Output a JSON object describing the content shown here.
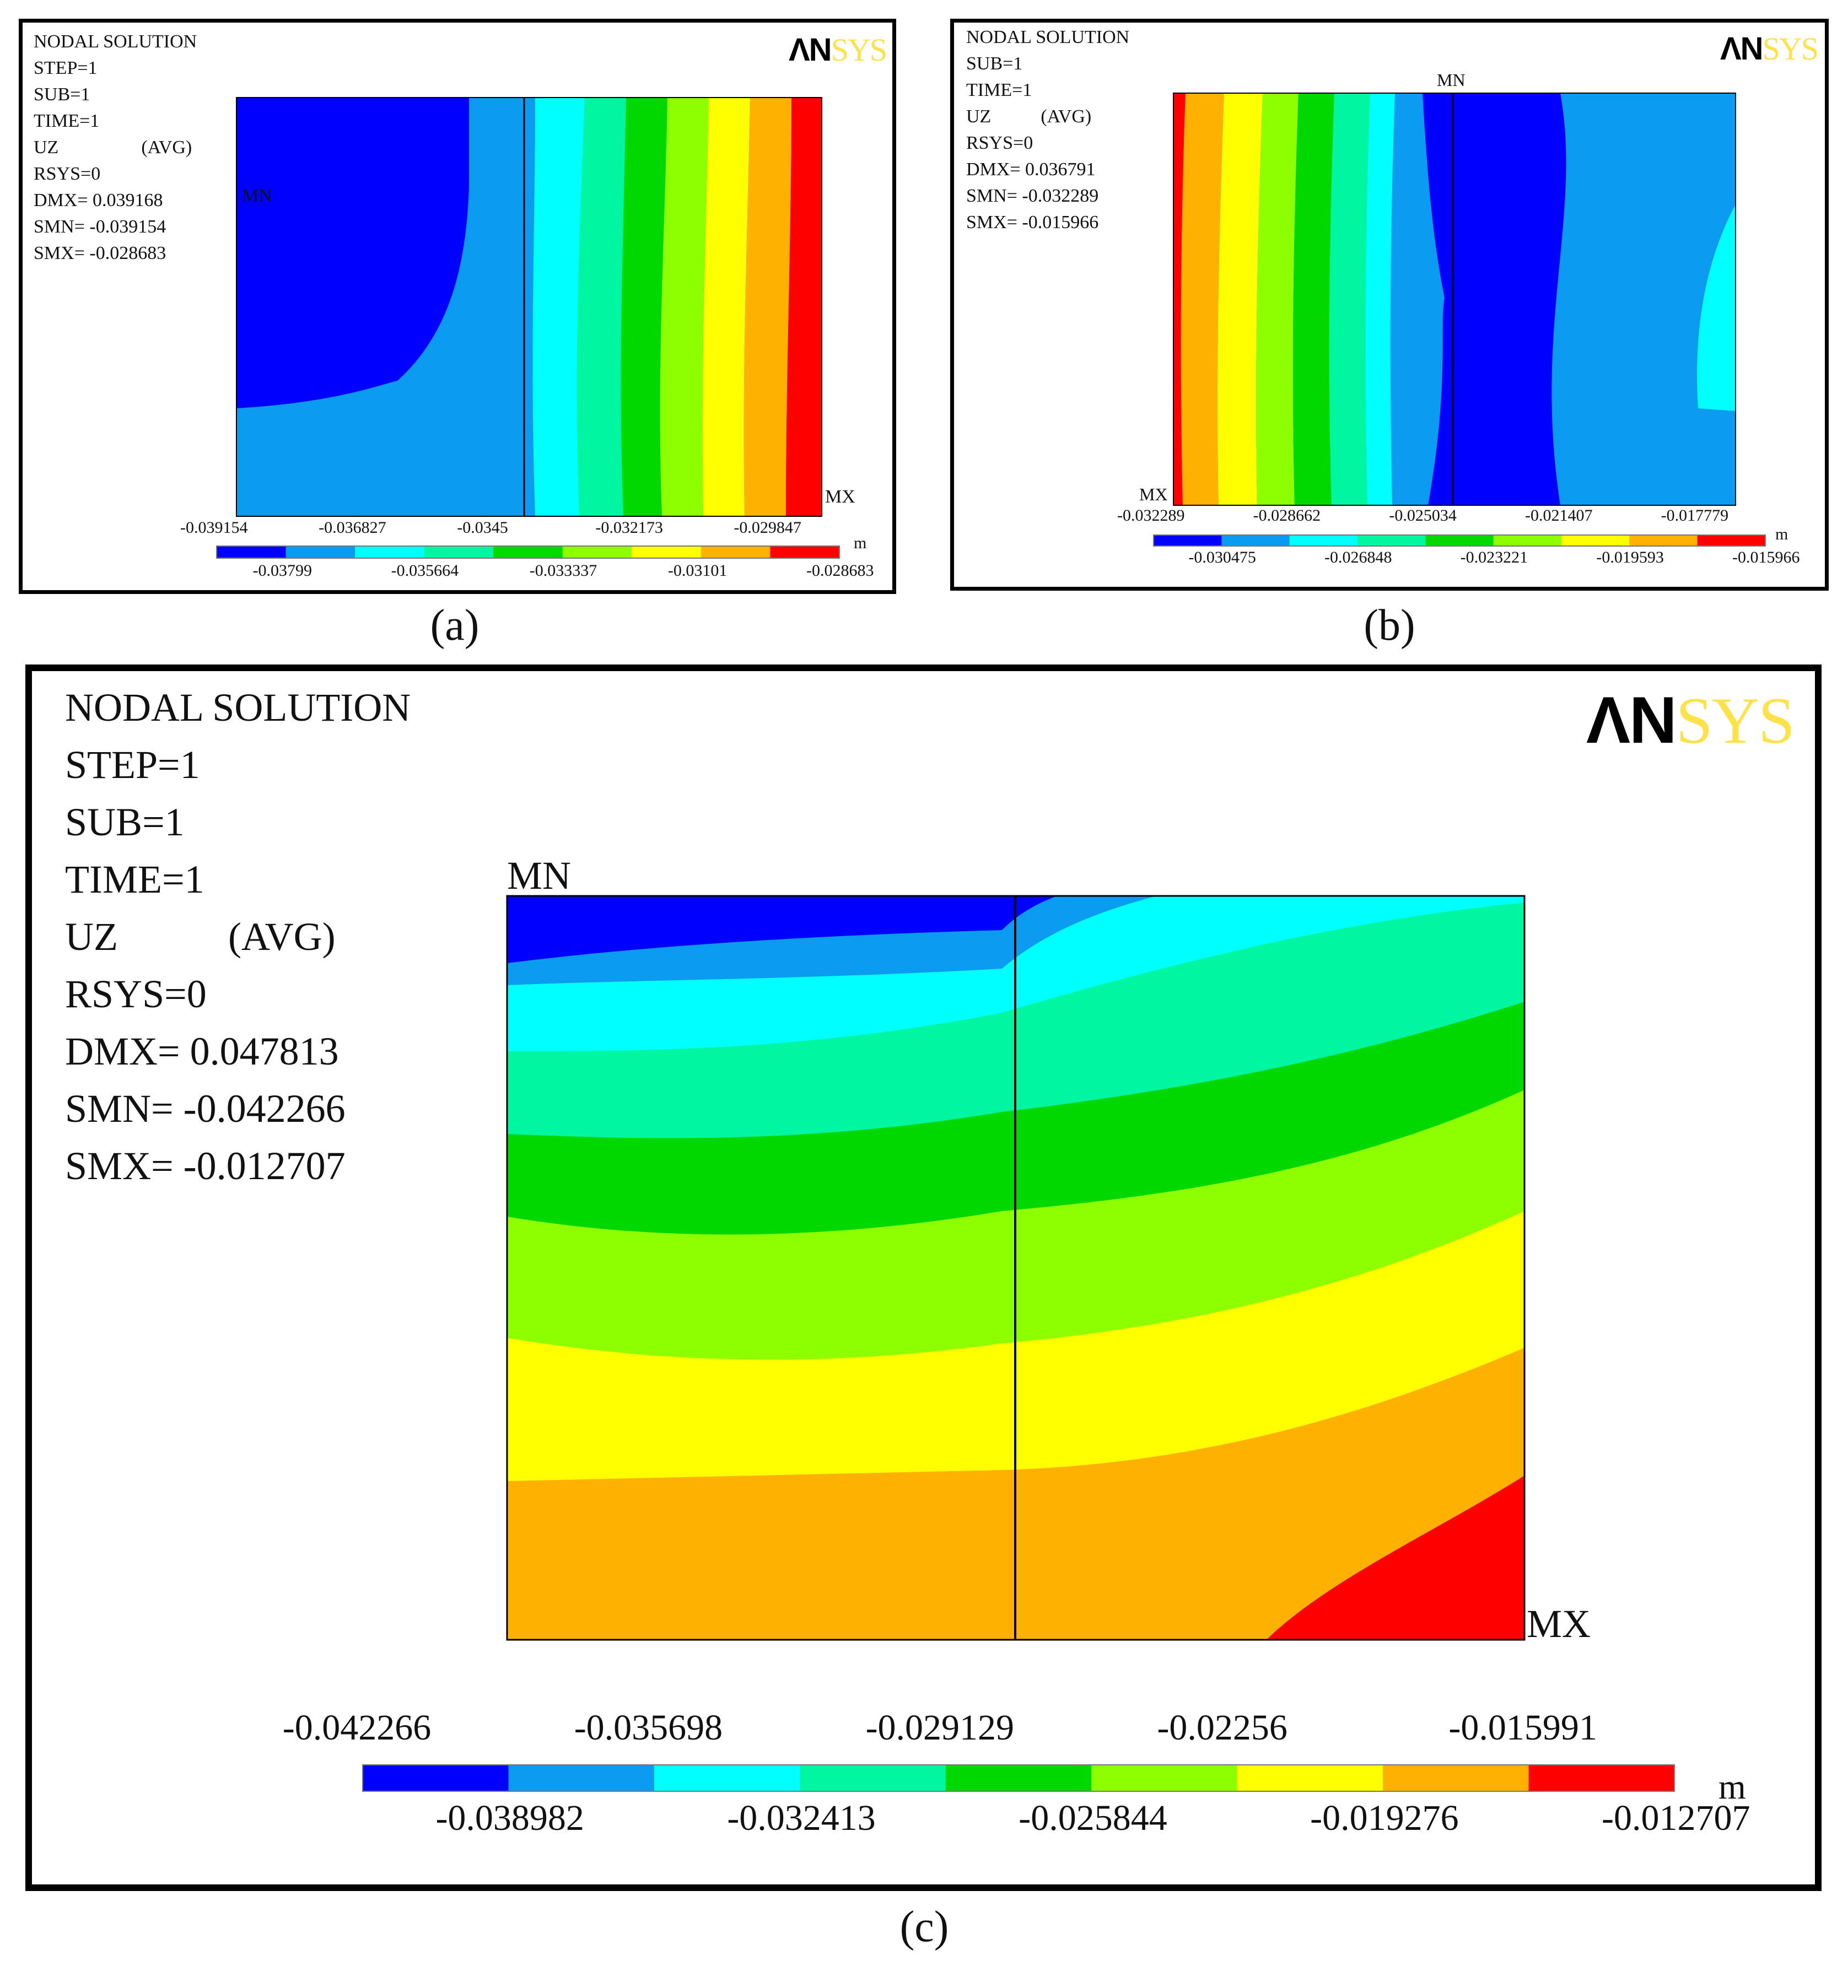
{
  "colors": {
    "bands": [
      "#0000ff",
      "#0b9cf2",
      "#00ffff",
      "#00f6a0",
      "#00d800",
      "#8dff00",
      "#ffff00",
      "#ffb100",
      "#ff0000"
    ]
  },
  "panels": [
    {
      "id": "a",
      "label": "(a)",
      "title": "NODAL SOLUTION",
      "step": "STEP=1",
      "sub": "SUB=1",
      "time": "TIME=1",
      "uz": "UZ",
      "avg": "(AVG)",
      "rsys": "RSYS=0",
      "dmx": "DMX= 0.039168",
      "smn": "SMN= -0.039154",
      "smx": "SMX= -0.028683",
      "mn_label": "MN",
      "mx_label": "MX",
      "unit": "m",
      "legend_top": [
        "-0.039154",
        "-0.036827",
        "-0.0345",
        "-0.032173",
        "-0.029847"
      ],
      "legend_bottom": [
        "-0.03799",
        "-0.035664",
        "-0.033337",
        "-0.03101",
        "-0.028683"
      ]
    },
    {
      "id": "b",
      "label": "(b)",
      "title": "NODAL SOLUTION",
      "sub": "SUB=1",
      "time": "TIME=1",
      "uz": "UZ",
      "avg": "(AVG)",
      "rsys": "RSYS=0",
      "dmx": "DMX= 0.036791",
      "smn": "SMN= -0.032289",
      "smx": "SMX= -0.015966",
      "mn_label": "MN",
      "mx_label": "MX",
      "unit": "m",
      "legend_top": [
        "-0.032289",
        "-0.028662",
        "-0.025034",
        "-0.021407",
        "-0.017779"
      ],
      "legend_bottom": [
        "-0.030475",
        "-0.026848",
        "-0.023221",
        "-0.019593",
        "-0.015966"
      ]
    },
    {
      "id": "c",
      "label": "(c)",
      "title": "NODAL SOLUTION",
      "step": "STEP=1",
      "sub": "SUB=1",
      "time": "TIME=1",
      "uz": "UZ",
      "avg": "(AVG)",
      "rsys": "RSYS=0",
      "dmx": "DMX= 0.047813",
      "smn": "SMN= -0.042266",
      "smx": "SMX= -0.012707",
      "mn_label": "MN",
      "mx_label": "MX",
      "unit": "m",
      "legend_top": [
        "-0.042266",
        "-0.035698",
        "-0.029129",
        "-0.02256",
        "-0.015991"
      ],
      "legend_bottom": [
        "-0.038982",
        "-0.032413",
        "-0.025844",
        "-0.019276",
        "-0.012707"
      ]
    }
  ],
  "logo": {
    "an": "ΛN",
    "sys": "SYS"
  }
}
